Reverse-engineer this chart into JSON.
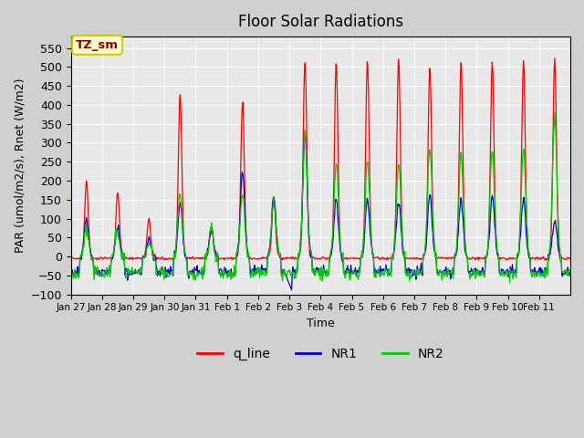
{
  "title": "Floor Solar Radiations",
  "xlabel": "Time",
  "ylabel": "PAR (umol/m2/s), Rnet (W/m2)",
  "ylim": [
    -100,
    580
  ],
  "yticks": [
    -100,
    -50,
    0,
    50,
    100,
    150,
    200,
    250,
    300,
    350,
    400,
    450,
    500,
    550
  ],
  "annotation_text": "TZ_sm",
  "annotation_bg": "#ffffcc",
  "annotation_border": "#cccc00",
  "annotation_text_color": "#8b0000",
  "line_colors": {
    "q_line": "#ff0000",
    "NR1": "#0000cc",
    "NR2": "#00cc00"
  },
  "fig_bg_color": "#d0d0d0",
  "axes_bg": "#e8e8e8",
  "legend_labels": [
    "q_line",
    "NR1",
    "NR2"
  ],
  "n_days": 16,
  "x_tick_labels": [
    "Jan 27",
    "Jan 28",
    "Jan 29",
    "Jan 30",
    "Jan 31",
    "Feb 1",
    "Feb 2",
    "Feb 3",
    "Feb 4",
    "Feb 5",
    "Feb 6",
    "Feb 7",
    "Feb 8",
    "Feb 9",
    "Feb 10",
    "Feb 11"
  ],
  "q_peaks": [
    200,
    170,
    100,
    430,
    80,
    410,
    160,
    520,
    515,
    520,
    520,
    500,
    515,
    515,
    520,
    520
  ],
  "nr1_peaks": [
    100,
    80,
    50,
    150,
    80,
    230,
    160,
    330,
    155,
    160,
    150,
    165,
    155,
    165,
    160,
    100
  ],
  "nr2_peaks": [
    80,
    70,
    40,
    170,
    80,
    170,
    160,
    335,
    250,
    260,
    250,
    290,
    280,
    285,
    290,
    380
  ]
}
